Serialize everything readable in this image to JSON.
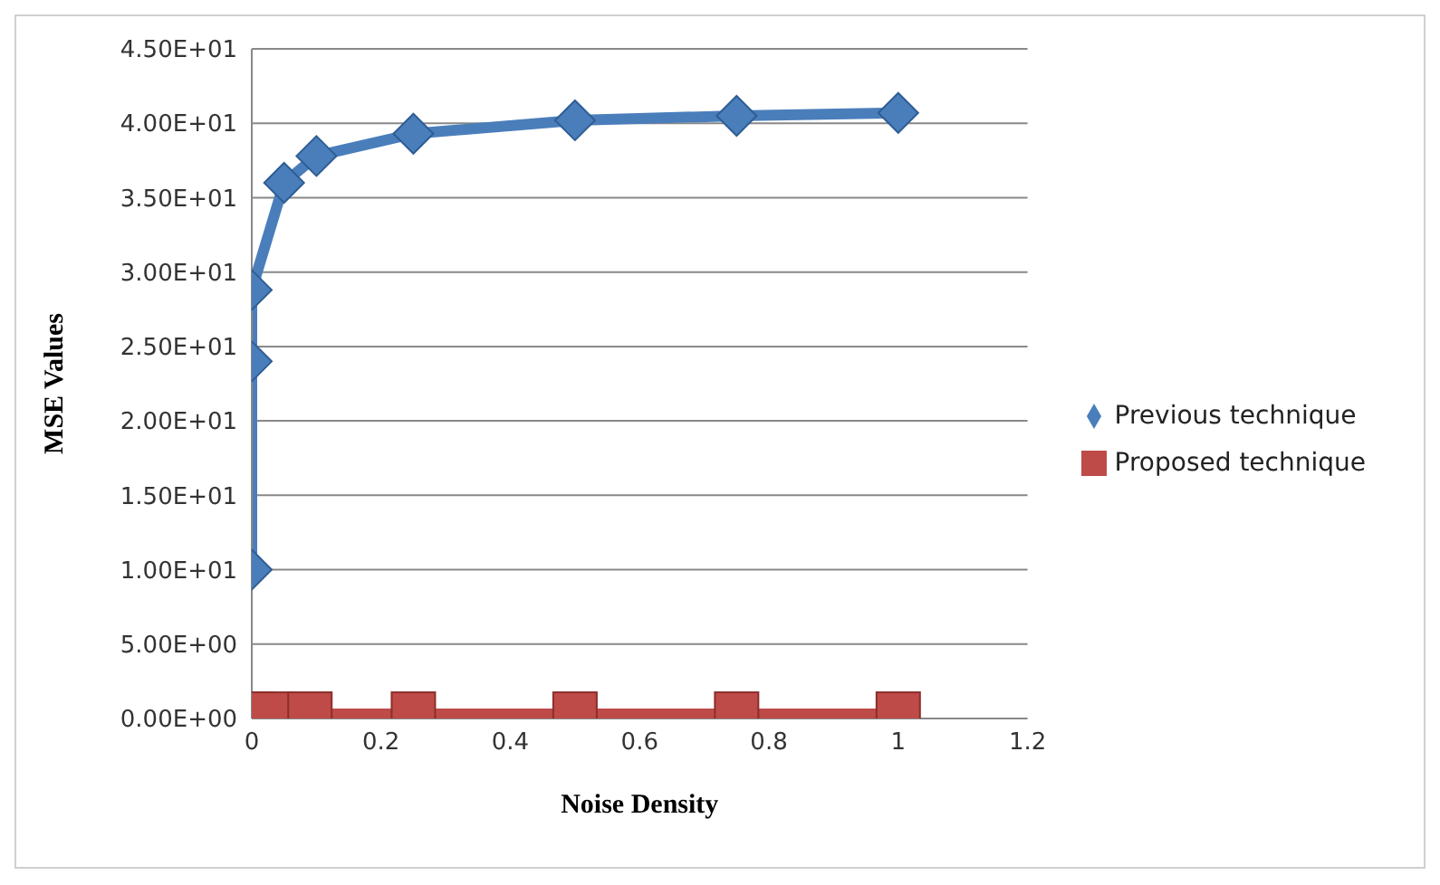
{
  "chart_data": {
    "type": "line",
    "xlabel": "Noise Density",
    "ylabel": "MSE Values",
    "xlim": [
      0,
      1.2
    ],
    "xticks": [
      0,
      0.2,
      0.4,
      0.6,
      0.8,
      1,
      1.2
    ],
    "ylim": [
      0,
      45
    ],
    "yticks": [
      {
        "value": 0,
        "label": "0.00E+00"
      },
      {
        "value": 5,
        "label": "5.00E+00"
      },
      {
        "value": 10,
        "label": "1.00E+01"
      },
      {
        "value": 15,
        "label": "1.50E+01"
      },
      {
        "value": 20,
        "label": "2.00E+01"
      },
      {
        "value": 25,
        "label": "2.50E+01"
      },
      {
        "value": 30,
        "label": "3.00E+01"
      },
      {
        "value": 35,
        "label": "3.50E+01"
      },
      {
        "value": 40,
        "label": "4.00E+01"
      },
      {
        "value": 45,
        "label": "4.50E+01"
      }
    ],
    "grid": "y",
    "legend": "right",
    "series": [
      {
        "name": "Previous technique",
        "color": "#4a7ebb",
        "marker": "diamond",
        "x": [
          0,
          0,
          0,
          0.05,
          0.1,
          0.25,
          0.5,
          0.75,
          1
        ],
        "values": [
          10,
          24,
          28.8,
          36,
          37.8,
          39.3,
          40.2,
          40.5,
          40.7
        ]
      },
      {
        "name": "Proposed technique",
        "color": "#be4b48",
        "marker": "square",
        "x": [
          0,
          0.03,
          0.09,
          0.25,
          0.5,
          0.75,
          1
        ],
        "values": [
          0.3,
          0.3,
          0.3,
          0.3,
          0.3,
          0.3,
          0.3
        ]
      }
    ]
  }
}
